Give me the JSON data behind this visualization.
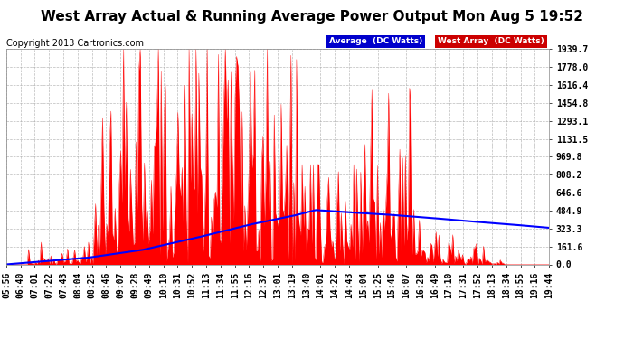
{
  "title": "West Array Actual & Running Average Power Output Mon Aug 5 19:52",
  "copyright": "Copyright 2013 Cartronics.com",
  "legend_labels": [
    "Average  (DC Watts)",
    "West Array  (DC Watts)"
  ],
  "legend_bg_colors": [
    "#0000cc",
    "#cc0000"
  ],
  "legend_text_color": "#ffffff",
  "y_ticks": [
    0.0,
    161.6,
    323.3,
    484.9,
    646.6,
    808.2,
    969.8,
    1131.5,
    1293.1,
    1454.8,
    1616.4,
    1778.0,
    1939.7
  ],
  "ylim": [
    0.0,
    1939.7
  ],
  "x_labels": [
    "05:56",
    "06:40",
    "07:01",
    "07:22",
    "07:43",
    "08:04",
    "08:25",
    "08:46",
    "09:07",
    "09:28",
    "09:49",
    "10:10",
    "10:31",
    "10:52",
    "11:13",
    "11:34",
    "11:55",
    "12:16",
    "12:37",
    "13:01",
    "13:19",
    "13:40",
    "14:01",
    "14:22",
    "14:43",
    "15:04",
    "15:25",
    "15:46",
    "16:07",
    "16:28",
    "16:49",
    "17:10",
    "17:31",
    "17:52",
    "18:13",
    "18:34",
    "18:55",
    "19:16",
    "19:44"
  ],
  "bg_color": "#ffffff",
  "plot_bg_color": "#ffffff",
  "grid_color": "#aaaaaa",
  "title_color": "#000000",
  "tick_color": "#000000",
  "west_array_color": "#ff0000",
  "west_array_fill": "#ff0000",
  "avg_color": "#0000ff",
  "title_fontsize": 11,
  "tick_fontsize": 7,
  "copyright_fontsize": 7
}
